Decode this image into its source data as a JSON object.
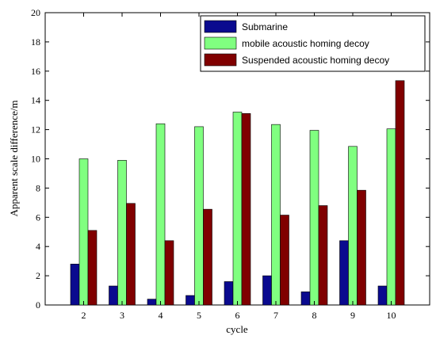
{
  "chart_data": {
    "type": "bar",
    "categories": [
      "2",
      "3",
      "4",
      "5",
      "6",
      "7",
      "8",
      "9",
      "10"
    ],
    "series": [
      {
        "name": "Submarine",
        "color": "#0a0a8f",
        "values": [
          2.8,
          1.3,
          0.4,
          0.65,
          1.6,
          2.0,
          0.9,
          4.4,
          1.3
        ]
      },
      {
        "name": "mobile acoustic homing decoy",
        "color": "#80ff80",
        "values": [
          10.0,
          9.9,
          12.4,
          12.2,
          13.2,
          12.35,
          11.95,
          10.85,
          12.05
        ]
      },
      {
        "name": "Suspended acoustic homing decoy",
        "color": "#800000",
        "values": [
          5.1,
          6.95,
          4.4,
          6.55,
          13.1,
          6.15,
          6.8,
          7.85,
          15.35
        ]
      }
    ],
    "xlabel": "cycle",
    "ylabel": "Apparent scale difference/m",
    "ylim": [
      0,
      20
    ],
    "yticks": [
      0,
      2,
      4,
      6,
      8,
      10,
      12,
      14,
      16,
      18,
      20
    ],
    "legend_position": "top-right",
    "grid": false
  }
}
